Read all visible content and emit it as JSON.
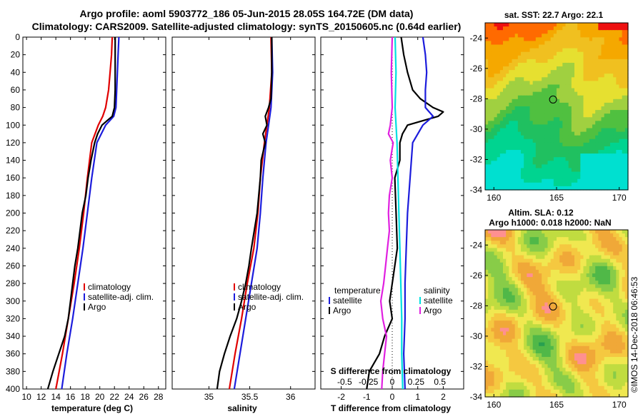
{
  "title": {
    "line1": "Argo profile: aoml 5903772_186 05-Jun-2015 28.05S 164.72E (DM data)",
    "line2": "Climatology: CARS2009. Satellite-adjusted climatology: synTS_20150605.nc (0.64d earlier)"
  },
  "colors": {
    "argo": "#000000",
    "climatology": "#e00000",
    "satellite": "#1c1cdc",
    "salinity": "#e020e0",
    "salinity_sat": "#00e0e0"
  },
  "depth_axis": {
    "ylim": [
      0,
      400
    ],
    "ticks": [
      0,
      20,
      40,
      60,
      80,
      100,
      120,
      140,
      160,
      180,
      200,
      220,
      240,
      260,
      280,
      300,
      320,
      340,
      360,
      380,
      400
    ]
  },
  "chart_data": [
    {
      "type": "line",
      "name": "temperature",
      "xlabel": "temperature (deg C)",
      "xlim": [
        9.5,
        29
      ],
      "xticks": [
        10,
        12,
        14,
        16,
        18,
        20,
        22,
        24,
        26,
        28
      ],
      "legend": [
        "climatology",
        "satellite-adj. clim.",
        "Argo"
      ],
      "series": [
        {
          "name": "climatology",
          "color": "climatology",
          "depth": [
            0,
            20,
            40,
            60,
            80,
            90,
            100,
            120,
            160,
            200,
            240,
            280,
            320,
            360,
            400
          ],
          "values": [
            21.7,
            21.6,
            21.4,
            21.2,
            20.8,
            20.4,
            19.8,
            18.9,
            18.3,
            17.8,
            17.2,
            16.5,
            15.7,
            14.9,
            14.0
          ]
        },
        {
          "name": "satellite-adj. clim.",
          "color": "satellite",
          "depth": [
            0,
            20,
            40,
            60,
            80,
            90,
            100,
            120,
            160,
            200,
            240,
            280,
            320,
            360,
            400
          ],
          "values": [
            22.6,
            22.5,
            22.4,
            22.3,
            22.2,
            21.9,
            20.8,
            19.6,
            18.9,
            18.3,
            17.7,
            17.0,
            16.3,
            15.5,
            14.8
          ]
        },
        {
          "name": "Argo",
          "color": "argo",
          "depth": [
            0,
            20,
            40,
            60,
            80,
            90,
            95,
            100,
            110,
            120,
            140,
            160,
            180,
            200,
            220,
            240,
            260,
            280,
            300,
            320,
            340,
            360,
            380,
            400
          ],
          "values": [
            22.1,
            22.1,
            22.1,
            22.1,
            22.0,
            21.7,
            21.0,
            20.3,
            19.7,
            19.3,
            18.8,
            18.4,
            18.1,
            17.6,
            17.3,
            17.0,
            16.6,
            16.3,
            16.0,
            15.7,
            15.2,
            14.4,
            13.6,
            12.9
          ]
        }
      ]
    },
    {
      "type": "line",
      "name": "salinity",
      "xlabel": "salinity",
      "xlim": [
        34.55,
        36.3
      ],
      "xticks": [
        35,
        35.5,
        36
      ],
      "xticklabels": [
        "35",
        "35.5",
        "36"
      ],
      "legend": [
        "climatology",
        "satellite-adj. clim.",
        "Argo"
      ],
      "series": [
        {
          "name": "climatology",
          "color": "climatology",
          "depth": [
            0,
            40,
            80,
            100,
            120,
            160,
            200,
            240,
            280,
            320,
            360,
            400
          ],
          "values": [
            35.76,
            35.77,
            35.74,
            35.71,
            35.68,
            35.63,
            35.6,
            35.55,
            35.47,
            35.4,
            35.32,
            35.25
          ]
        },
        {
          "name": "satellite-adj. clim.",
          "color": "satellite",
          "depth": [
            0,
            40,
            80,
            100,
            120,
            160,
            200,
            240,
            280,
            320,
            360,
            400
          ],
          "values": [
            35.77,
            35.78,
            35.76,
            35.73,
            35.7,
            35.66,
            35.63,
            35.59,
            35.52,
            35.45,
            35.38,
            35.31
          ]
        },
        {
          "name": "Argo",
          "color": "argo",
          "depth": [
            0,
            40,
            70,
            80,
            90,
            100,
            110,
            120,
            140,
            160,
            200,
            240,
            260,
            280,
            300,
            320,
            340,
            360,
            380,
            400
          ],
          "values": [
            35.77,
            35.77,
            35.76,
            35.73,
            35.69,
            35.71,
            35.66,
            35.69,
            35.64,
            35.63,
            35.59,
            35.52,
            35.49,
            35.45,
            35.4,
            35.34,
            35.26,
            35.19,
            35.13,
            35.1
          ]
        }
      ]
    },
    {
      "type": "line",
      "name": "difference",
      "xlabel": "T difference from climatology",
      "xlabel2": "S difference from climatology",
      "xlim": [
        -2.8,
        2.8
      ],
      "xticks": [
        -2,
        -1,
        0,
        1,
        2
      ],
      "sticks": [
        -0.5,
        -0.25,
        0,
        0.25,
        0.5
      ],
      "sticklabels": [
        "-0.5",
        "-0.25",
        "0",
        "0.25",
        "0.5"
      ],
      "legend_left": [
        "temperature",
        "satellite",
        "Argo"
      ],
      "legend_right": [
        "salinity",
        "satellite",
        "Argo"
      ],
      "series": [
        {
          "name": "T Argo",
          "color": "argo",
          "depth": [
            0,
            20,
            40,
            60,
            70,
            80,
            85,
            90,
            95,
            100,
            105,
            110,
            120,
            140,
            160,
            200,
            240,
            280,
            300,
            320,
            340,
            360,
            380,
            400
          ],
          "values": [
            0.35,
            0.45,
            0.6,
            0.8,
            1.1,
            1.6,
            2.0,
            1.8,
            1.2,
            0.6,
            0.5,
            0.4,
            0.3,
            0.3,
            0.1,
            0.15,
            0.2,
            0.0,
            -0.1,
            0.0,
            -0.3,
            -0.5,
            -0.9,
            -1.0
          ]
        },
        {
          "name": "T satellite",
          "color": "satellite",
          "depth": [
            0,
            20,
            40,
            60,
            80,
            90,
            100,
            120,
            160,
            200,
            240,
            280,
            320,
            360,
            400
          ],
          "values": [
            1.2,
            1.3,
            1.35,
            1.3,
            1.3,
            1.6,
            1.2,
            0.8,
            0.7,
            0.6,
            0.55,
            0.5,
            0.5,
            0.45,
            0.5
          ]
        },
        {
          "name": "S satellite",
          "color": "salinity_sat",
          "depth": [
            0,
            40,
            80,
            120,
            160,
            200,
            240,
            280,
            320,
            360,
            400
          ],
          "values": [
            0.03,
            0.04,
            0.03,
            0.05,
            0.06,
            0.07,
            0.08,
            0.09,
            0.1,
            0.1,
            0.11
          ]
        },
        {
          "name": "S Argo",
          "color": "salinity",
          "depth": [
            0,
            40,
            80,
            100,
            110,
            120,
            140,
            160,
            180,
            200,
            220,
            240,
            260,
            280,
            300,
            320,
            340,
            360,
            380,
            400
          ],
          "values": [
            0.0,
            -0.01,
            0.0,
            -0.02,
            -0.04,
            0.01,
            -0.02,
            0.0,
            -0.03,
            -0.04,
            -0.03,
            -0.05,
            -0.07,
            -0.09,
            -0.12,
            -0.1,
            -0.06,
            -0.08,
            -0.1,
            -0.11
          ]
        }
      ]
    }
  ],
  "maps": {
    "sst": {
      "title": "sat. SST: 22.7 Argo: 22.1",
      "yticks": [
        -24,
        -26,
        -28,
        -30,
        -32,
        -34
      ],
      "yticklabels": [
        "-24",
        "-26",
        "-28",
        "-30",
        "-32",
        "-34"
      ],
      "xticks": [
        160,
        165,
        170
      ],
      "xticklabels": [
        "160",
        "165",
        "170"
      ],
      "profile_lon": 164.72,
      "profile_lat": -28.05,
      "palette": [
        "#00e0d0",
        "#00d490",
        "#20c060",
        "#50c040",
        "#a0d040",
        "#e6e030",
        "#f0c020",
        "#f5a800",
        "#ff6a00",
        "#ee1010"
      ]
    },
    "sla": {
      "title": "Altim. SLA: 0.12",
      "subtitle": "Argo h1000: 0.018 h2000: NaN",
      "yticks": [
        -24,
        -26,
        -28,
        -30,
        -32,
        -34
      ],
      "yticklabels": [
        "-24",
        "-26",
        "-28",
        "-30",
        "-32",
        "-34"
      ],
      "xticks": [
        160,
        165,
        170
      ],
      "xticklabels": [
        "160",
        "165",
        "170"
      ],
      "profile_lon": 164.72,
      "profile_lat": -28.05,
      "palette": [
        "#28a050",
        "#50b848",
        "#88cc48",
        "#c0dc40",
        "#f0e850",
        "#f5c840",
        "#f0a838",
        "#ff9090"
      ]
    }
  },
  "credit": "©IMOS 14-Dec-2018 06:46:53"
}
